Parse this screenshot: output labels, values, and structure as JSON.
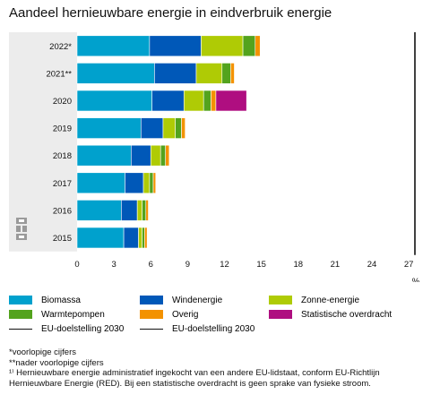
{
  "title": "Aandeel hernieuwbare energie in eindverbruik energie",
  "chart_data": {
    "type": "bar",
    "orientation": "horizontal",
    "stacked": true,
    "categories": [
      "2022*",
      "2021**",
      "2020",
      "2019",
      "2018",
      "2017",
      "2016",
      "2015"
    ],
    "series": [
      {
        "name": "Biomassa",
        "color": "#00a1cd",
        "values": [
          5.9,
          6.3,
          6.1,
          5.2,
          4.4,
          3.9,
          3.6,
          3.8
        ]
      },
      {
        "name": "Windenergie",
        "color": "#0058b8",
        "values": [
          4.2,
          3.4,
          2.6,
          1.8,
          1.6,
          1.5,
          1.3,
          1.2
        ]
      },
      {
        "name": "Zonne-energie",
        "color": "#afcb05",
        "values": [
          3.4,
          2.1,
          1.6,
          1.0,
          0.8,
          0.5,
          0.4,
          0.3
        ]
      },
      {
        "name": "Warmtepompen",
        "color": "#53a31d",
        "values": [
          1.0,
          0.7,
          0.6,
          0.5,
          0.4,
          0.3,
          0.3,
          0.2
        ]
      },
      {
        "name": "Overig",
        "color": "#f39200",
        "values": [
          0.4,
          0.3,
          0.4,
          0.3,
          0.3,
          0.2,
          0.2,
          0.2
        ]
      },
      {
        "name": "Statistische overdracht",
        "color": "#af0e80",
        "values": [
          0,
          0,
          2.5,
          0,
          0,
          0,
          0,
          0
        ]
      }
    ],
    "target": {
      "name": "EU-doelstelling 2030",
      "value": 27.5
    },
    "xlim": [
      0,
      27.5
    ],
    "xticks": [
      0,
      3,
      6,
      9,
      12,
      15,
      18,
      21,
      24,
      27
    ],
    "xlabel": "%",
    "grid": false
  },
  "legend": {
    "items": [
      {
        "label": "Biomassa",
        "color": "#00a1cd",
        "kind": "swatch"
      },
      {
        "label": "Windenergie",
        "color": "#0058b8",
        "kind": "swatch"
      },
      {
        "label": "Zonne-energie",
        "color": "#afcb05",
        "kind": "swatch"
      },
      {
        "label": "Warmtepompen",
        "color": "#53a31d",
        "kind": "swatch"
      },
      {
        "label": "Overig",
        "color": "#f39200",
        "kind": "swatch"
      },
      {
        "label": "Statistische overdracht",
        "color": "#af0e80",
        "kind": "swatch"
      },
      {
        "label": "EU-doelstelling 2030",
        "color": "#111111",
        "kind": "line"
      },
      {
        "label": "EU-doelstelling 2030",
        "color": "#111111",
        "kind": "line"
      }
    ]
  },
  "notes": [
    "*voorlopige cijfers",
    "**nader voorlopige cijfers",
    "¹⁾ Hernieuwbare energie administratief ingekocht van een andere EU-lidstaat, conform EU-Richtlijn Hernieuwbare Energie (RED). Bij een statistische overdracht is geen sprake van fysieke stroom."
  ],
  "logo_icon": "cbs-logo-icon"
}
